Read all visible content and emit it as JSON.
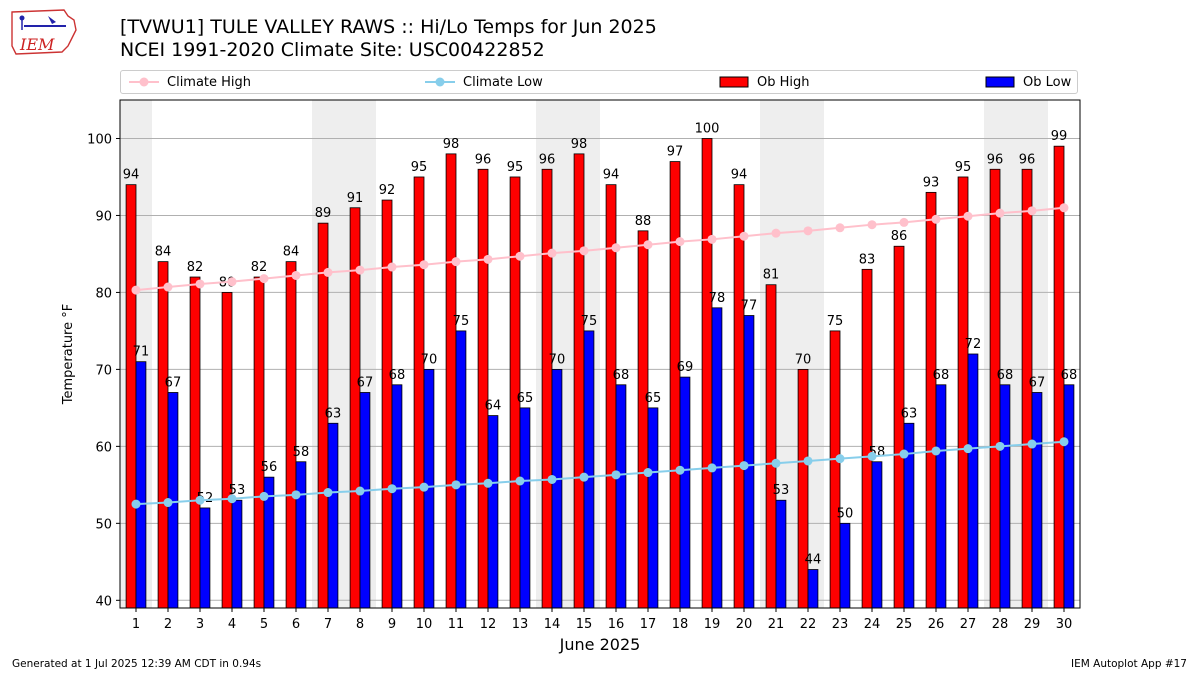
{
  "title": {
    "line1": "[TVWU1] TULE VALLEY RAWS :: Hi/Lo Temps for Jun 2025",
    "line2": "NCEI 1991-2020 Climate Site: USC00422852"
  },
  "logo": {
    "text": "IEM"
  },
  "legend": {
    "climate_high": "Climate High",
    "climate_low": "Climate Low",
    "ob_high": "Ob High",
    "ob_low": "Ob Low"
  },
  "colors": {
    "ob_high": "#ff0000",
    "ob_low": "#0000ff",
    "climate_high": "#ffc0cb",
    "climate_low": "#87ceeb",
    "weekend_shade": "#eeeeee",
    "grid": "#b0b0b0"
  },
  "footer": {
    "left": "Generated at 1 Jul 2025 12:39 AM CDT in 0.94s",
    "right": "IEM Autoplot App #17"
  },
  "chart_data": {
    "type": "bar",
    "title": "[TVWU1] TULE VALLEY RAWS :: Hi/Lo Temps for Jun 2025",
    "subtitle": "NCEI 1991-2020 Climate Site: USC00422852",
    "xlabel": "June 2025",
    "ylabel": "Temperature °F",
    "ylim": [
      39,
      105
    ],
    "yticks": [
      40,
      50,
      60,
      70,
      80,
      90,
      100
    ],
    "grid": "y",
    "legend_position": "top",
    "categories": [
      "1",
      "2",
      "3",
      "4",
      "5",
      "6",
      "7",
      "8",
      "9",
      "10",
      "11",
      "12",
      "13",
      "14",
      "15",
      "16",
      "17",
      "18",
      "19",
      "20",
      "21",
      "22",
      "23",
      "24",
      "25",
      "26",
      "27",
      "28",
      "29",
      "30"
    ],
    "weekend_days": [
      1,
      7,
      8,
      14,
      15,
      21,
      22,
      28,
      29
    ],
    "series": [
      {
        "name": "Ob High",
        "type": "bar",
        "values": [
          94,
          84,
          82,
          80,
          82,
          84,
          89,
          91,
          92,
          95,
          98,
          96,
          95,
          96,
          98,
          94,
          88,
          97,
          100,
          94,
          81,
          70,
          75,
          83,
          86,
          93,
          95,
          96,
          96,
          99
        ]
      },
      {
        "name": "Ob Low",
        "type": "bar",
        "values": [
          71,
          67,
          52,
          53,
          56,
          58,
          63,
          67,
          68,
          70,
          75,
          64,
          65,
          70,
          75,
          68,
          65,
          69,
          78,
          77,
          53,
          44,
          50,
          58,
          63,
          68,
          72,
          68,
          67,
          68
        ]
      },
      {
        "name": "Climate High",
        "type": "line",
        "values": [
          80.3,
          80.7,
          81.1,
          81.4,
          81.8,
          82.2,
          82.6,
          82.9,
          83.3,
          83.6,
          84.0,
          84.3,
          84.7,
          85.1,
          85.4,
          85.8,
          86.2,
          86.6,
          86.9,
          87.3,
          87.7,
          88.0,
          88.4,
          88.8,
          89.1,
          89.5,
          89.9,
          90.3,
          90.6,
          91.0
        ]
      },
      {
        "name": "Climate Low",
        "type": "line",
        "values": [
          52.5,
          52.7,
          53.0,
          53.2,
          53.5,
          53.7,
          54.0,
          54.2,
          54.5,
          54.7,
          55.0,
          55.2,
          55.5,
          55.7,
          56.0,
          56.3,
          56.6,
          56.9,
          57.2,
          57.5,
          57.8,
          58.1,
          58.4,
          58.7,
          59.0,
          59.4,
          59.7,
          60.0,
          60.3,
          60.6
        ]
      }
    ]
  }
}
